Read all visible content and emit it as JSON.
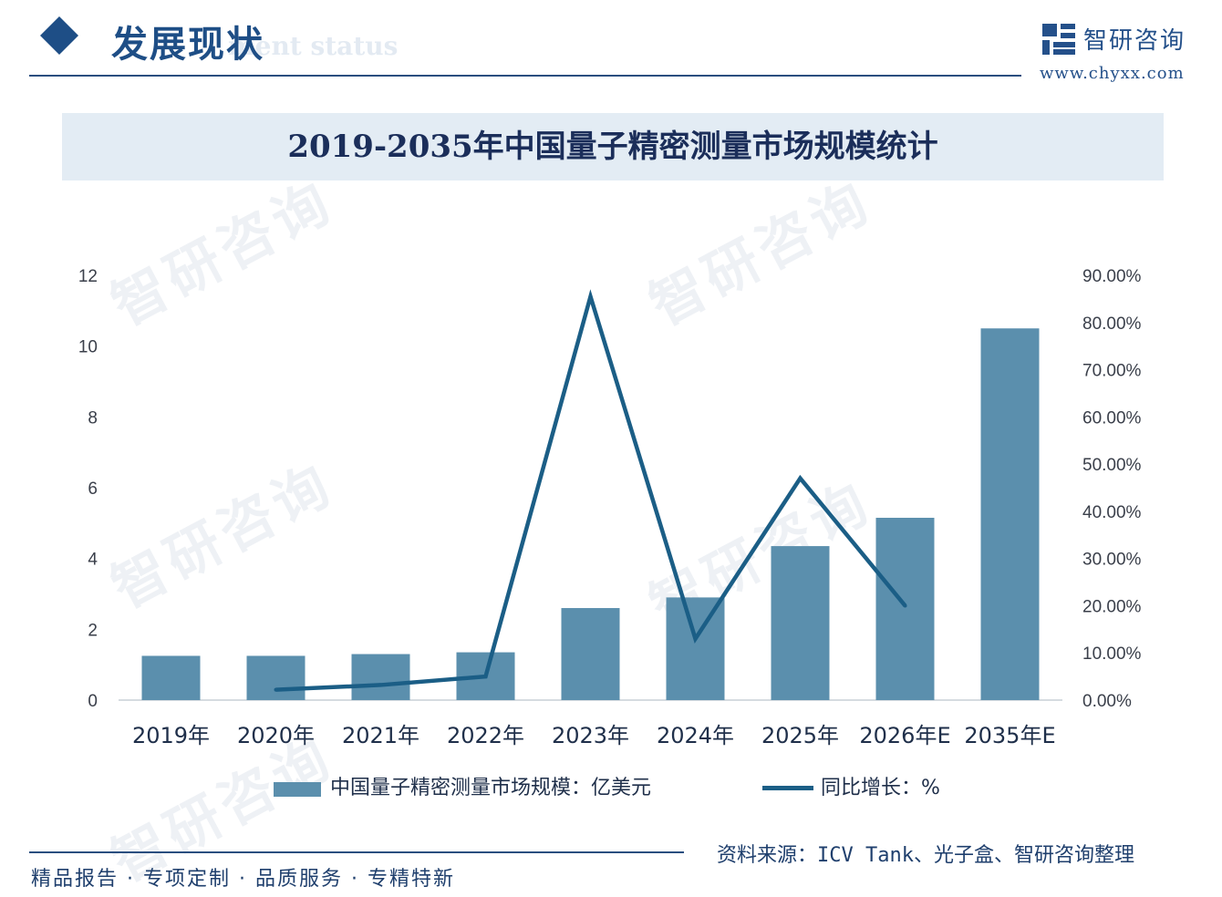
{
  "header": {
    "title": "发展现状",
    "subtitle": "ment status"
  },
  "brand": {
    "name": "智研咨询",
    "url": "www.chyxx.com"
  },
  "watermark_text": "智研咨询",
  "colors": {
    "bar": "#5b8fad",
    "line": "#1b5e86",
    "accent": "#1e4e86"
  },
  "chart_data": {
    "type": "bar",
    "title": "2019-2035年中国量子精密测量市场规模统计",
    "categories": [
      "2019年",
      "2020年",
      "2021年",
      "2022年",
      "2023年",
      "2024年",
      "2025年",
      "2026年E",
      "2035年E"
    ],
    "series": [
      {
        "name": "中国量子精密测量市场规模：亿美元",
        "type": "bar",
        "axis": "left",
        "values": [
          1.25,
          1.25,
          1.3,
          1.35,
          2.6,
          2.9,
          4.35,
          5.15,
          10.5
        ]
      },
      {
        "name": "同比增长：%",
        "type": "line",
        "axis": "right",
        "values": [
          null,
          2.2,
          3.2,
          5.0,
          85.5,
          13.0,
          47.0,
          20.0,
          null
        ]
      }
    ],
    "y_left": {
      "range": [
        0,
        12
      ],
      "ticks": [
        "0",
        "2",
        "4",
        "6",
        "8",
        "10",
        "12"
      ]
    },
    "y_right": {
      "range": [
        0,
        90
      ],
      "ticks": [
        "0.00%",
        "10.00%",
        "20.00%",
        "30.00%",
        "40.00%",
        "50.00%",
        "60.00%",
        "70.00%",
        "80.00%",
        "90.00%"
      ]
    },
    "legend_position": "bottom",
    "grid": false
  },
  "footer": {
    "tagline": "精品报告 · 专项定制 · 品质服务 · 专精特新",
    "source": "资料来源：ICV Tank、光子盒、智研咨询整理"
  }
}
